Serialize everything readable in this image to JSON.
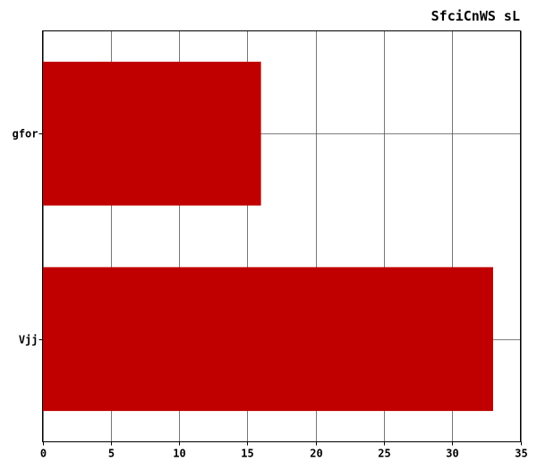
{
  "chart_data": {
    "type": "bar",
    "orientation": "horizontal",
    "title": "SfciCnWS sL",
    "xlabel": "",
    "ylabel": "",
    "categories": [
      "gfor",
      "Vjj"
    ],
    "values": [
      16,
      33
    ],
    "xlim": [
      0,
      35
    ],
    "xticks": [
      0,
      5,
      10,
      15,
      20,
      25,
      30,
      35
    ],
    "grid": true,
    "legend": "none",
    "colors": {
      "bar": "#c00000",
      "grid": "#555555",
      "axis": "#000000"
    }
  }
}
